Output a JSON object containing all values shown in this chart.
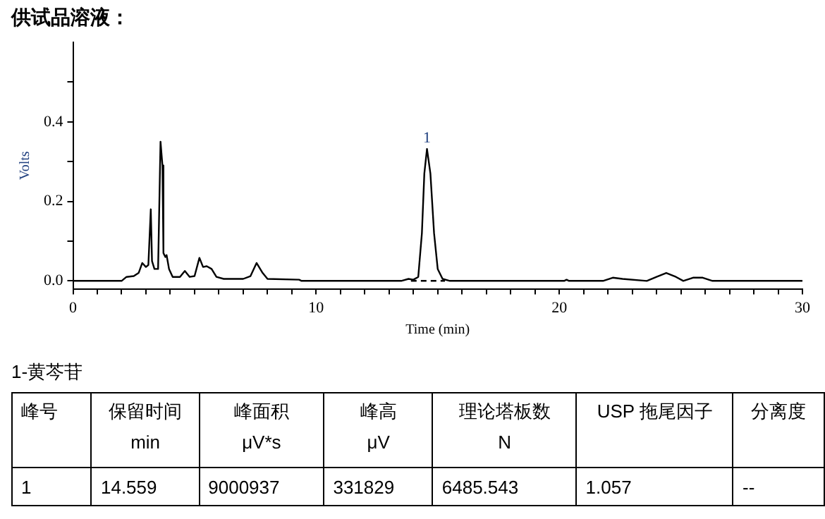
{
  "chart_data": [
    {
      "type": "line",
      "title": "供试品溶液：",
      "xlabel": "Time (min)",
      "ylabel": "Volts",
      "x": [
        0,
        2.0,
        2.2,
        2.5,
        2.7,
        2.85,
        3.0,
        3.1,
        3.2,
        3.25,
        3.35,
        3.5,
        3.6,
        3.68,
        3.72,
        3.8,
        3.85,
        3.95,
        4.1,
        4.4,
        4.6,
        4.8,
        5.0,
        5.2,
        5.35,
        5.5,
        5.7,
        5.9,
        6.2,
        7.0,
        7.3,
        7.55,
        7.8,
        8.0,
        9.3,
        9.4,
        13.5,
        13.8,
        14.0,
        14.2,
        14.35,
        14.45,
        14.559,
        14.7,
        14.85,
        15.0,
        15.2,
        15.5,
        20.2,
        20.3,
        20.4,
        21.8,
        22.2,
        22.6,
        23.6,
        24.0,
        24.4,
        24.8,
        25.1,
        25.5,
        25.9,
        26.3,
        30
      ],
      "series": [
        {
          "color": "#000000",
          "values": [
            0,
            0,
            0.01,
            0.012,
            0.02,
            0.045,
            0.035,
            0.04,
            0.18,
            0.05,
            0.03,
            0.03,
            0.35,
            0.29,
            0.07,
            0.06,
            0.065,
            0.03,
            0.01,
            0.01,
            0.025,
            0.01,
            0.012,
            0.058,
            0.035,
            0.037,
            0.03,
            0.01,
            0.005,
            0.005,
            0.012,
            0.045,
            0.02,
            0.005,
            0.003,
            0,
            0,
            0.005,
            0.003,
            0.01,
            0.12,
            0.27,
            0.332,
            0.27,
            0.12,
            0.03,
            0.005,
            0,
            0,
            0.003,
            0,
            0,
            0.008,
            0.005,
            0,
            0.01,
            0.02,
            0.01,
            0,
            0.008,
            0.008,
            0,
            0
          ]
        },
        {
          "color": "#000000",
          "x": [
            13.9,
            15.3
          ],
          "values": [
            0,
            0
          ],
          "line_style": "dashed"
        }
      ],
      "xlim": [
        0,
        30
      ],
      "xticks": [
        0,
        {
          "value": 1,
          "label": null
        },
        {
          "value": 2,
          "label": null
        },
        {
          "value": 3,
          "label": null
        },
        {
          "value": 4,
          "label": null
        },
        {
          "value": 5,
          "label": null
        },
        {
          "value": 6,
          "label": null
        },
        {
          "value": 7,
          "label": null
        },
        {
          "value": 8,
          "label": null
        },
        {
          "value": 9,
          "label": null
        },
        10,
        {
          "value": 11,
          "label": null
        },
        {
          "value": 12,
          "label": null
        },
        {
          "value": 13,
          "label": null
        },
        {
          "value": 14,
          "label": null
        },
        {
          "value": 15,
          "label": null
        },
        {
          "value": 16,
          "label": null
        },
        {
          "value": 17,
          "label": null
        },
        {
          "value": 18,
          "label": null
        },
        {
          "value": 19,
          "label": null
        },
        20,
        {
          "value": 21,
          "label": null
        },
        {
          "value": 22,
          "label": null
        },
        {
          "value": 23,
          "label": null
        },
        {
          "value": 24,
          "label": null
        },
        {
          "value": 25,
          "label": null
        },
        {
          "value": 26,
          "label": null
        },
        {
          "value": 27,
          "label": null
        },
        {
          "value": 28,
          "label": null
        },
        {
          "value": 29,
          "label": null
        },
        30
      ],
      "ylim": [
        -0.02,
        0.6
      ],
      "yticks": [
        {
          "value": 0,
          "label": "0.0"
        },
        {
          "value": 0.1,
          "label": null
        },
        {
          "value": 0.2,
          "label": "0.2"
        },
        {
          "value": 0.3,
          "label": null
        },
        {
          "value": 0.4,
          "label": "0.4"
        },
        {
          "value": 0.5,
          "label": null
        }
      ],
      "annotations": [
        {
          "text": "1",
          "x": 14.559,
          "y": 0.332
        }
      ],
      "grid": false,
      "legend": false,
      "marker": "none"
    },
    {
      "type": "other",
      "title": "1-黄芩苷",
      "annotations": [
        "峰号",
        "保留时间\nmin",
        "峰面积\nμV*s",
        "峰高\nμV",
        "理论塔板数\nN",
        "USP 拖尾因子",
        "分离度",
        "1",
        "14.559",
        "9000937",
        "331829",
        "6485.543",
        "1.057",
        "--"
      ]
    }
  ]
}
